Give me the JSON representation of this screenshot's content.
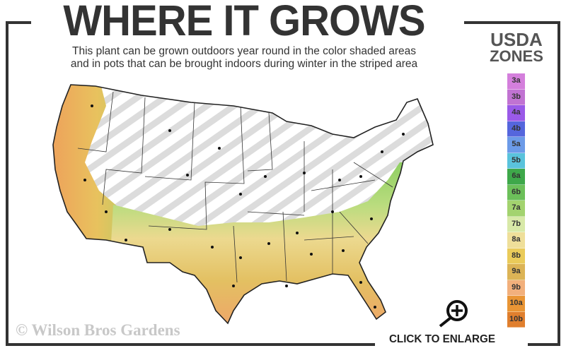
{
  "header": {
    "title": "WHERE IT GROWS",
    "subtitle_line1": "This plant can be grown outdoors year round in the color shaded areas",
    "subtitle_line2": "and in pots that can be brought indoors during winter in the striped area"
  },
  "legend": {
    "title_line1": "USDA",
    "title_line2": "ZONES",
    "zones": [
      {
        "label": "3a",
        "color": "#d47fdc"
      },
      {
        "label": "3b",
        "color": "#c173d2"
      },
      {
        "label": "4a",
        "color": "#9a5ae8"
      },
      {
        "label": "4b",
        "color": "#5566dd"
      },
      {
        "label": "5a",
        "color": "#6c9be8"
      },
      {
        "label": "5b",
        "color": "#5ac3dc"
      },
      {
        "label": "6a",
        "color": "#3ea84a"
      },
      {
        "label": "6b",
        "color": "#6cc05a"
      },
      {
        "label": "7a",
        "color": "#a3d36f"
      },
      {
        "label": "7b",
        "color": "#d8e9a8"
      },
      {
        "label": "8a",
        "color": "#efdf9a"
      },
      {
        "label": "8b",
        "color": "#eacb5a"
      },
      {
        "label": "9a",
        "color": "#dcb456"
      },
      {
        "label": "9b",
        "color": "#f2b07c"
      },
      {
        "label": "10a",
        "color": "#e99535"
      },
      {
        "label": "10b",
        "color": "#e07f2e"
      }
    ]
  },
  "map": {
    "striped_color": "#dcdcdc",
    "outline_color": "#222"
  },
  "footer": {
    "watermark": "© Wilson Bros Gardens",
    "enlarge_label": "CLICK TO ENLARGE",
    "enlarge_icon": "magnifier-plus-icon"
  }
}
